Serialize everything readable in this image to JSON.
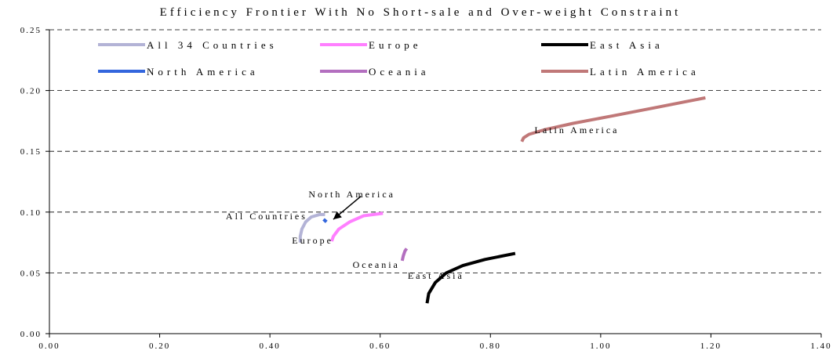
{
  "chart_data": {
    "type": "line",
    "title": "Efficiency Frontier With No Short-sale and Over-weight Constraint",
    "xlabel": "",
    "ylabel": "",
    "xlim": [
      0,
      1.4
    ],
    "ylim": [
      0,
      0.25
    ],
    "x_ticks": [
      "0.00",
      "0.20",
      "0.40",
      "0.60",
      "0.80",
      "1.00",
      "1.20",
      "1.40"
    ],
    "y_ticks": [
      "0.00",
      "0.05",
      "0.10",
      "0.15",
      "0.20",
      "0.25"
    ],
    "grid": "horizontal dashed",
    "legend_position": "top",
    "series": [
      {
        "name": "All 34 Countries",
        "color": "#b3b3d6",
        "points": [
          [
            0.455,
            0.075
          ],
          [
            0.455,
            0.08
          ],
          [
            0.458,
            0.086
          ],
          [
            0.465,
            0.092
          ],
          [
            0.475,
            0.096
          ],
          [
            0.49,
            0.098
          ],
          [
            0.5,
            0.098
          ]
        ]
      },
      {
        "name": "Europe",
        "color": "#ff7fff",
        "points": [
          [
            0.512,
            0.076
          ],
          [
            0.515,
            0.08
          ],
          [
            0.525,
            0.086
          ],
          [
            0.545,
            0.092
          ],
          [
            0.57,
            0.097
          ],
          [
            0.605,
            0.099
          ]
        ]
      },
      {
        "name": "East Asia",
        "color": "#000000",
        "points": [
          [
            0.685,
            0.025
          ],
          [
            0.688,
            0.033
          ],
          [
            0.7,
            0.042
          ],
          [
            0.72,
            0.05
          ],
          [
            0.75,
            0.056
          ],
          [
            0.79,
            0.061
          ],
          [
            0.845,
            0.066
          ]
        ]
      },
      {
        "name": "North America",
        "color": "#3366dd",
        "points": [
          [
            0.498,
            0.092
          ],
          [
            0.5,
            0.093
          ],
          [
            0.502,
            0.094
          ]
        ]
      },
      {
        "name": "Oceania",
        "color": "#b36fbf",
        "points": [
          [
            0.64,
            0.06
          ],
          [
            0.642,
            0.064
          ],
          [
            0.645,
            0.068
          ],
          [
            0.648,
            0.07
          ]
        ]
      },
      {
        "name": "Latin America",
        "color": "#c07878",
        "points": [
          [
            0.857,
            0.158
          ],
          [
            0.86,
            0.161
          ],
          [
            0.87,
            0.164
          ],
          [
            0.9,
            0.168
          ],
          [
            0.95,
            0.173
          ],
          [
            1.02,
            0.179
          ],
          [
            1.1,
            0.186
          ],
          [
            1.19,
            0.194
          ]
        ]
      }
    ],
    "annotations": [
      {
        "text": "Latin America",
        "x": 0.88,
        "y": 0.165
      },
      {
        "text": "North America",
        "x": 0.47,
        "y": 0.112
      },
      {
        "text": "All Countries",
        "x": 0.32,
        "y": 0.094
      },
      {
        "text": "Europe",
        "x": 0.44,
        "y": 0.074
      },
      {
        "text": "Oceania",
        "x": 0.55,
        "y": 0.054
      },
      {
        "text": "East Asia",
        "x": 0.65,
        "y": 0.045
      }
    ],
    "arrow": {
      "from": [
        0.565,
        0.113
      ],
      "to": [
        0.515,
        0.094
      ]
    }
  }
}
